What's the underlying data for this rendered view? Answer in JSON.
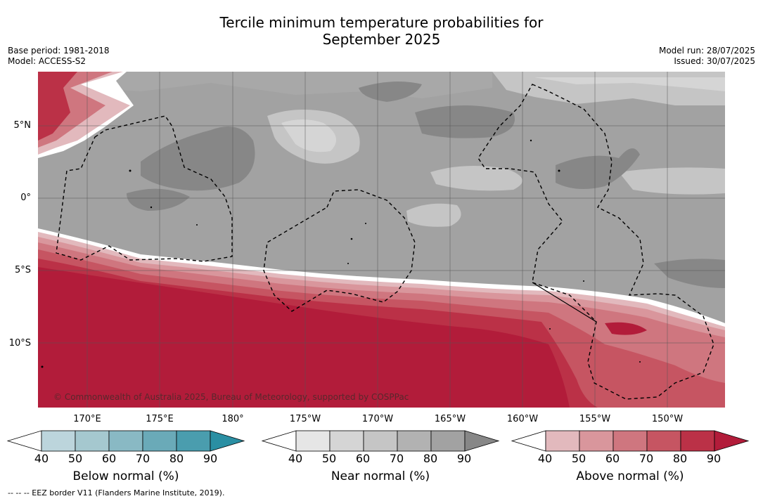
{
  "title_line1": "Tercile minimum temperature probabilities for",
  "title_line2": "September 2025",
  "base_period": "Base period: 1981-2018",
  "model": "Model: ACCESS-S2",
  "model_run": "Model run: 28/07/2025",
  "issued": "Issued: 30/07/2025",
  "lat_labels": [
    "5°N",
    "0°",
    "5°S",
    "10°S"
  ],
  "lon_labels": [
    "170°E",
    "175°E",
    "180°",
    "175°W",
    "170°W",
    "165°W",
    "160°W",
    "155°W",
    "150°W"
  ],
  "copyright": "© Commonwealth of Australia 2025, Bureau of Meteorology, supported by COSPPac",
  "colorbars": [
    {
      "label": "Below normal (%)",
      "ticks": [
        "40",
        "50",
        "60",
        "70",
        "80",
        "90"
      ],
      "colors": [
        "#ffffff",
        "#bcd5dc",
        "#a5c8cf",
        "#89b9c4",
        "#6aaab8",
        "#4a9dae",
        "#2a8fa3"
      ]
    },
    {
      "label": "Near normal (%)",
      "ticks": [
        "40",
        "50",
        "60",
        "70",
        "80",
        "90"
      ],
      "colors": [
        "#ffffff",
        "#e6e6e6",
        "#d5d5d5",
        "#c5c5c5",
        "#b2b2b2",
        "#a2a2a2",
        "#878787"
      ]
    },
    {
      "label": "Above normal (%)",
      "ticks": [
        "40",
        "50",
        "60",
        "70",
        "80",
        "90"
      ],
      "colors": [
        "#ffffff",
        "#e2b9bd",
        "#d9969c",
        "#cf767f",
        "#c65562",
        "#bb3147",
        "#b21c3a"
      ]
    }
  ],
  "legend_note": "--  --  -- EEZ border V11 (Flanders Marine Institute, 2019)."
}
